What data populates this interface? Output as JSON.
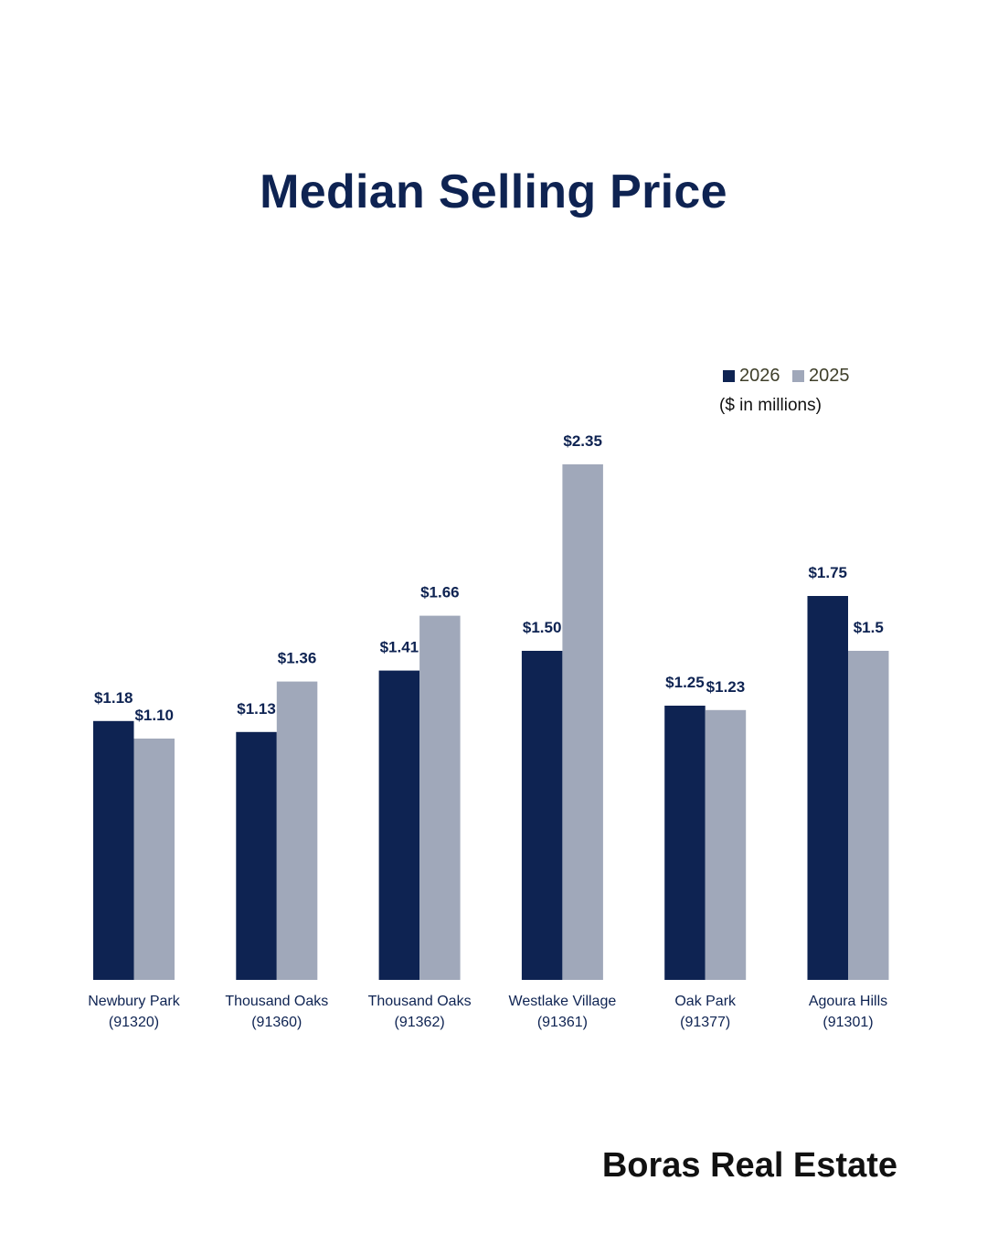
{
  "title": "Median Selling Price",
  "brand": "Boras Real Estate",
  "colors": {
    "title": "#0e2352",
    "series_2026": "#0e2352",
    "series_2025": "#a0a8ba"
  },
  "chart_data": {
    "type": "bar",
    "title": "Median Selling Price",
    "unit_note": "($ in millions)",
    "legend_position": "top-right",
    "grid": false,
    "ylim": [
      0,
      2.35
    ],
    "categories": [
      [
        "Newbury Park",
        "(91320)"
      ],
      [
        "Thousand Oaks",
        "(91360)"
      ],
      [
        "Thousand Oaks",
        "(91362)"
      ],
      [
        "Westlake Village",
        "(91361)"
      ],
      [
        "Oak Park",
        "(91377)"
      ],
      [
        "Agoura Hills",
        "(91301)"
      ]
    ],
    "series": [
      {
        "name": "2026",
        "color": "#0e2352",
        "values": [
          1.18,
          1.13,
          1.41,
          1.5,
          1.25,
          1.75
        ],
        "labels": [
          "$1.18",
          "$1.13",
          "$1.41",
          "$1.50",
          "$1.25",
          "$1.75"
        ]
      },
      {
        "name": "2025",
        "color": "#a0a8ba",
        "values": [
          1.1,
          1.36,
          1.66,
          2.35,
          1.23,
          1.5
        ],
        "labels": [
          "$1.10",
          "$1.36",
          "$1.66",
          "$2.35",
          "$1.23",
          "$1.5"
        ]
      }
    ]
  }
}
